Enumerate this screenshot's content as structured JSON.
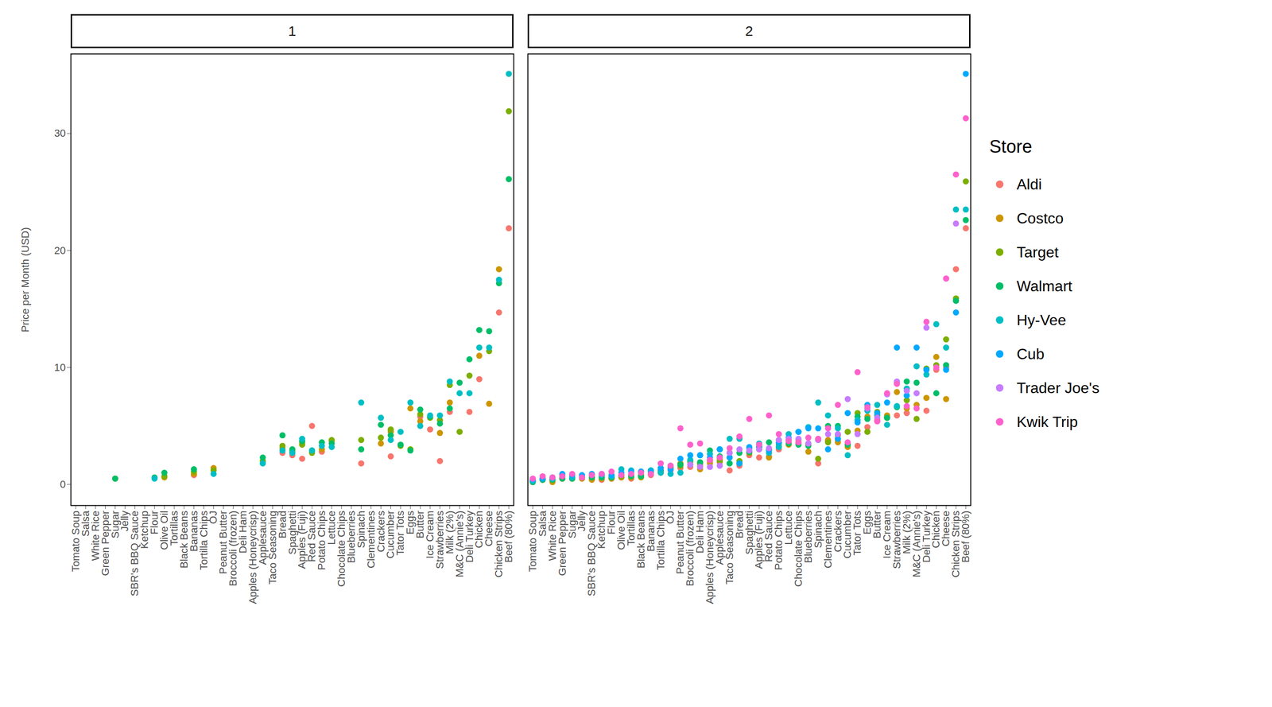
{
  "chart_data": {
    "type": "scatter",
    "y_label": "Price per Month (USD)",
    "legend_title": "Store",
    "legend": "right",
    "ylim": [
      -1.8,
      36.8
    ],
    "yticks": [
      0,
      10,
      20,
      30
    ],
    "categories": [
      "Tomato Soup",
      "Salsa",
      "White Rice",
      "Green Pepper",
      "Sugar",
      "Jelly",
      "SBR's BBQ Sauce",
      "Ketchup",
      "Flour",
      "Olive Oil",
      "Tortillas",
      "Black Beans",
      "Bananas",
      "Tortilla Chips",
      "OJ",
      "Peanut Butter",
      "Broccoli (frozen)",
      "Deli Ham",
      "Apples (Honeycrisp)",
      "Applesauce",
      "Taco Seasoning",
      "Bread",
      "Spaghetti",
      "Apples (Fuji)",
      "Red Sauce",
      "Potato Chips",
      "Lettuce",
      "Chocolate Chips",
      "Blueberries",
      "Spinach",
      "Clementines",
      "Crackers",
      "Cucumber",
      "Tator Tots",
      "Eggs",
      "Butter",
      "Ice Cream",
      "Strawberries",
      "Milk (2%)",
      "M&C (Annie's)",
      "Deli Turkey",
      "Chicken",
      "Cheese",
      "Chicken Strips",
      "Beef (80%)"
    ],
    "panels": [
      {
        "title": "1",
        "series": [
          {
            "name": "Aldi",
            "color": "#F8766D",
            "values": [
              null,
              null,
              null,
              null,
              null,
              null,
              null,
              null,
              null,
              null,
              null,
              null,
              0.8,
              null,
              null,
              null,
              null,
              null,
              null,
              null,
              null,
              2.7,
              2.5,
              2.2,
              5.0,
              2.8,
              null,
              null,
              null,
              1.8,
              null,
              null,
              2.4,
              null,
              null,
              5.8,
              4.7,
              2.0,
              6.2,
              null,
              6.2,
              9.0,
              null,
              14.7,
              21.9
            ]
          },
          {
            "name": "Costco",
            "color": "#CD9600",
            "values": [
              null,
              null,
              null,
              null,
              null,
              null,
              null,
              null,
              null,
              0.6,
              null,
              null,
              0.9,
              null,
              1.4,
              null,
              null,
              null,
              null,
              null,
              null,
              3.1,
              null,
              3.6,
              null,
              3.0,
              3.7,
              null,
              null,
              null,
              null,
              3.5,
              4.5,
              null,
              6.5,
              5.4,
              null,
              4.4,
              7.0,
              null,
              null,
              11.0,
              6.9,
              18.4,
              null
            ]
          },
          {
            "name": "Target",
            "color": "#7CAE00",
            "values": [
              null,
              null,
              null,
              null,
              0.5,
              null,
              null,
              null,
              null,
              0.7,
              null,
              null,
              1.1,
              null,
              1.2,
              null,
              null,
              null,
              null,
              2.0,
              null,
              3.3,
              2.8,
              3.4,
              2.7,
              null,
              3.8,
              null,
              null,
              3.8,
              null,
              4.0,
              4.7,
              3.3,
              3.0,
              6.0,
              5.7,
              5.5,
              8.5,
              4.5,
              9.3,
              null,
              11.4,
              null,
              31.9
            ]
          },
          {
            "name": "Walmart",
            "color": "#00BE67",
            "values": [
              null,
              null,
              null,
              null,
              0.5,
              null,
              null,
              null,
              0.6,
              1.0,
              null,
              null,
              1.3,
              null,
              null,
              null,
              null,
              null,
              null,
              2.3,
              null,
              4.2,
              3.0,
              3.7,
              2.9,
              3.6,
              3.5,
              null,
              null,
              3.0,
              null,
              5.1,
              4.2,
              3.4,
              2.9,
              6.4,
              5.8,
              5.2,
              6.5,
              8.7,
              10.7,
              13.2,
              13.1,
              17.2,
              26.1
            ]
          },
          {
            "name": "Hy-Vee",
            "color": "#00BFC4",
            "values": [
              null,
              null,
              null,
              null,
              null,
              null,
              null,
              null,
              0.5,
              null,
              null,
              null,
              null,
              null,
              0.9,
              null,
              null,
              null,
              null,
              1.8,
              null,
              2.9,
              2.7,
              3.9,
              2.9,
              3.3,
              3.2,
              null,
              null,
              7.0,
              null,
              5.7,
              3.8,
              4.5,
              7.0,
              5.0,
              5.9,
              5.9,
              8.8,
              7.8,
              7.8,
              11.7,
              11.7,
              17.5,
              35.1
            ]
          }
        ]
      },
      {
        "title": "2",
        "series": [
          {
            "name": "Aldi",
            "color": "#F8766D",
            "values": [
              0.3,
              0.5,
              0.3,
              0.5,
              0.5,
              0.6,
              0.5,
              0.4,
              0.5,
              0.6,
              0.5,
              0.7,
              0.8,
              1.0,
              1.2,
              1.4,
              1.5,
              1.6,
              2.0,
              1.9,
              1.2,
              1.6,
              2.5,
              2.3,
              2.4,
              3.0,
              3.6,
              3.5,
              3.5,
              1.8,
              3.7,
              3.8,
              3.4,
              3.3,
              4.9,
              5.4,
              5.8,
              5.9,
              6.1,
              null,
              6.3,
              9.8,
              10.0,
              18.4,
              21.9
            ]
          },
          {
            "name": "Costco",
            "color": "#CD9600",
            "values": [
              0.2,
              0.4,
              0.2,
              0.5,
              0.5,
              0.5,
              0.4,
              0.5,
              0.5,
              0.6,
              0.6,
              0.6,
              0.9,
              1.0,
              1.5,
              1.8,
              1.9,
              1.3,
              1.8,
              2.2,
              2.3,
              1.8,
              2.8,
              3.0,
              2.3,
              3.3,
              3.4,
              3.6,
              2.8,
              3.9,
              3.8,
              3.6,
              3.2,
              4.6,
              5.8,
              5.5,
              5.9,
              7.9,
              6.5,
              6.8,
              7.4,
              10.9,
              7.3,
              null,
              null
            ]
          },
          {
            "name": "Target",
            "color": "#7CAE00",
            "values": [
              0.3,
              0.4,
              0.4,
              0.6,
              0.6,
              0.6,
              0.6,
              0.7,
              0.6,
              0.7,
              0.8,
              0.8,
              1.0,
              1.1,
              1.4,
              1.6,
              2.0,
              1.8,
              2.1,
              2.0,
              2.7,
              2.0,
              2.7,
              3.4,
              3.0,
              3.8,
              3.8,
              3.8,
              3.4,
              2.2,
              3.6,
              4.2,
              4.5,
              6.1,
              4.5,
              6.2,
              5.7,
              8.7,
              7.2,
              5.6,
              9.9,
              10.2,
              12.4,
              15.9,
              25.9
            ]
          },
          {
            "name": "Walmart",
            "color": "#00BE67",
            "values": [
              0.2,
              0.4,
              0.4,
              0.5,
              0.5,
              0.6,
              0.6,
              0.6,
              0.6,
              0.8,
              0.7,
              0.7,
              1.2,
              1.2,
              1.6,
              1.7,
              1.7,
              1.9,
              2.9,
              2.4,
              1.8,
              2.7,
              2.8,
              3.2,
              3.6,
              3.5,
              3.5,
              3.4,
              3.3,
              3.8,
              5.0,
              5.0,
              3.4,
              5.8,
              5.6,
              5.9,
              5.7,
              6.6,
              8.8,
              8.7,
              9.8,
              7.8,
              10.2,
              15.7,
              22.6
            ]
          },
          {
            "name": "Hy-Vee",
            "color": "#00BFC4",
            "values": [
              0.3,
              0.5,
              0.5,
              0.8,
              0.6,
              0.7,
              0.8,
              0.8,
              0.7,
              1.3,
              1.2,
              1.1,
              1.2,
              1.0,
              0.9,
              1.0,
              2.1,
              2.5,
              2.6,
              3.0,
              3.9,
              3.9,
              3.1,
              3.5,
              2.7,
              3.2,
              4.3,
              4.5,
              4.9,
              7.0,
              5.9,
              4.8,
              2.5,
              5.5,
              6.3,
              6.8,
              5.1,
              6.7,
              8.2,
              10.1,
              9.4,
              13.7,
              11.7,
              23.5,
              23.5
            ]
          },
          {
            "name": "Cub",
            "color": "#00A9FF",
            "values": [
              0.4,
              0.5,
              0.6,
              0.9,
              0.8,
              0.8,
              0.9,
              0.9,
              0.8,
              1.0,
              1.1,
              1.1,
              1.1,
              1.4,
              1.3,
              2.2,
              2.5,
              2.5,
              2.3,
              3.0,
              2.3,
              1.8,
              3.2,
              3.3,
              2.9,
              3.6,
              4.0,
              4.5,
              4.8,
              4.8,
              3.0,
              3.9,
              6.1,
              5.3,
              6.8,
              6.1,
              7.0,
              11.7,
              7.6,
              11.7,
              9.8,
              null,
              9.8,
              14.7,
              35.1
            ]
          },
          {
            "name": "Trader Joe's",
            "color": "#C77CFF",
            "values": [
              null,
              null,
              null,
              null,
              null,
              null,
              null,
              null,
              null,
              null,
              null,
              null,
              null,
              null,
              null,
              null,
              1.7,
              1.5,
              1.5,
              1.6,
              2.7,
              3.0,
              2.9,
              3.0,
              3.1,
              3.8,
              3.9,
              3.9,
              3.5,
              3.8,
              4.3,
              4.3,
              7.3,
              4.3,
              6.5,
              5.7,
              7.7,
              8.8,
              8.0,
              7.8,
              13.4,
              null,
              17.6,
              22.3,
              null
            ]
          },
          {
            "name": "Kwik Trip",
            "color": "#FF61CC",
            "values": [
              0.5,
              0.7,
              0.6,
              0.7,
              0.9,
              0.6,
              0.8,
              0.9,
              1.1,
              0.8,
              0.9,
              1.0,
              0.9,
              1.8,
              1.6,
              4.8,
              3.4,
              3.5,
              2.1,
              2.3,
              3.1,
              4.1,
              5.6,
              3.4,
              5.9,
              4.3,
              3.7,
              3.6,
              4.0,
              3.9,
              4.8,
              6.8,
              3.6,
              9.6,
              6.6,
              5.4,
              7.8,
              8.6,
              6.7,
              6.5,
              13.9,
              10.0,
              17.6,
              26.5,
              31.3
            ]
          }
        ]
      }
    ]
  }
}
